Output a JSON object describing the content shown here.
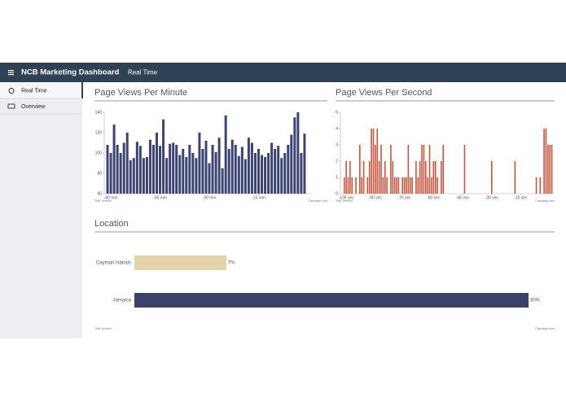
{
  "header": {
    "title": "NCB Marketing Dashboard",
    "section": "Real Time"
  },
  "sidebar": {
    "items": [
      "Real Time",
      "Overview"
    ]
  },
  "chart_data": [
    {
      "type": "bar",
      "title": "Page Views Per Minute",
      "color": "#3d4373",
      "x": [
        -61,
        -60,
        -59,
        -58,
        -57,
        -56,
        -55,
        -54,
        -53,
        -52,
        -51,
        -50,
        -49,
        -48,
        -47,
        -46,
        -45,
        -44,
        -43,
        -42,
        -41,
        -40,
        -39,
        -38,
        -37,
        -36,
        -35,
        -34,
        -33,
        -32,
        -31,
        -30,
        -29,
        -28,
        -27,
        -26,
        -25,
        -24,
        -23,
        -22,
        -21,
        -20,
        -19,
        -18,
        -17,
        -16,
        -15,
        -14,
        -13,
        -12,
        -11,
        -10,
        -9,
        -8,
        -7,
        -6,
        -5,
        -4,
        -3,
        -2,
        -1
      ],
      "values": [
        108,
        100,
        128,
        108,
        100,
        110,
        120,
        93,
        95,
        111,
        107,
        95,
        96,
        113,
        108,
        120,
        107,
        133,
        95,
        109,
        110,
        108,
        98,
        104,
        96,
        108,
        100,
        95,
        120,
        104,
        112,
        90,
        108,
        101,
        115,
        85,
        137,
        104,
        113,
        108,
        97,
        106,
        94,
        115,
        110,
        100,
        104,
        98,
        96,
        100,
        110,
        104,
        107,
        95,
        100,
        108,
        118,
        135,
        140,
        100,
        119
      ],
      "xlim": [
        -62,
        1
      ],
      "xticks": [
        {
          "value": -60,
          "label": "-60 min"
        },
        {
          "value": -45,
          "label": "-45 min"
        },
        {
          "value": -30,
          "label": "-30 min"
        },
        {
          "value": -15,
          "label": "-15 min"
        }
      ],
      "ylim": [
        60,
        140
      ],
      "yticks": [
        60,
        80,
        100,
        120,
        140
      ],
      "trial_label": "Trial Version",
      "credit": "Canvasjs.com"
    },
    {
      "type": "bar",
      "title": "Page Views Per Second",
      "color": "#c8553d",
      "x": [
        -106,
        -105,
        -104,
        -103,
        -102,
        -100,
        -98,
        -97,
        -96,
        -94,
        -93,
        -92,
        -91,
        -90,
        -89,
        -88,
        -87,
        -86,
        -85,
        -84,
        -82,
        -81,
        -80,
        -79,
        -78,
        -76,
        -75,
        -74,
        -73,
        -72,
        -71,
        -69,
        -68,
        -67,
        -66,
        -65,
        -64,
        -63,
        -62,
        -61,
        -60,
        -59,
        -58,
        -56,
        -55,
        -44,
        -30,
        -18,
        -7,
        -5,
        -3,
        -2,
        -1,
        0,
        1
      ],
      "values": [
        1,
        2,
        1,
        2,
        1,
        1,
        3,
        1,
        2,
        1,
        2,
        4,
        4,
        3,
        4,
        2,
        3,
        1,
        2,
        1,
        3,
        2,
        1,
        1,
        1,
        1,
        1,
        1,
        3,
        1,
        1,
        2,
        1,
        2,
        3,
        3,
        2,
        1,
        3,
        1,
        2,
        2,
        1,
        2,
        3,
        3,
        2,
        2,
        1,
        1,
        4,
        4,
        3,
        3,
        3
      ],
      "xlim": [
        -108,
        2
      ],
      "xticks": [
        {
          "value": -105,
          "label": "-105 sec"
        },
        {
          "value": -90,
          "label": "-90 sec"
        },
        {
          "value": -75,
          "label": "-75 sec"
        },
        {
          "value": -60,
          "label": "-60 sec"
        },
        {
          "value": -45,
          "label": "-45 sec"
        },
        {
          "value": -30,
          "label": "-30 sec"
        },
        {
          "value": -15,
          "label": "-15 sec"
        }
      ],
      "ylim": [
        0,
        5
      ],
      "yticks": [
        0,
        1,
        2,
        3,
        4,
        5
      ],
      "trial_label": "Trial Version",
      "credit": "Canvasjs.com"
    },
    {
      "type": "hbar",
      "title": "Location",
      "categories": [
        "Cayman Islands",
        "Jamaica"
      ],
      "values": [
        7,
        30
      ],
      "value_labels": [
        "7%",
        "30%"
      ],
      "colors": [
        "#e3d4aa",
        "#3b4168"
      ],
      "trial_label": "Trial Version",
      "credit": "Canvasjs.com"
    }
  ]
}
